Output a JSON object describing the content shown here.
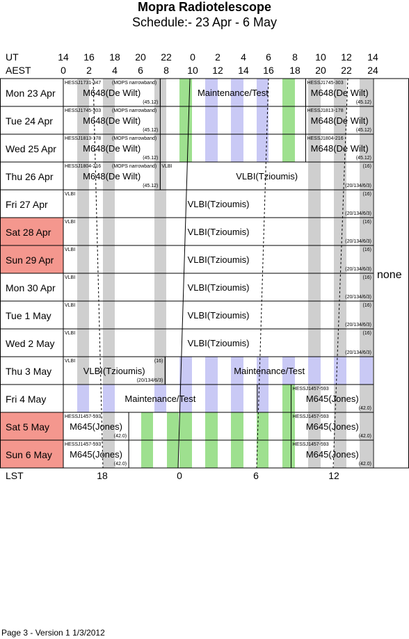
{
  "title": "Mopra Radiotelescope",
  "subtitle": "Schedule:- 23 Apr - 6  May",
  "axis": {
    "ut_label": "UT",
    "aest_label": "AEST",
    "lst_label": "LST",
    "ut_ticks": [
      "14",
      "16",
      "18",
      "20",
      "22",
      "0",
      "2",
      "4",
      "6",
      "8",
      "10",
      "12",
      "14"
    ],
    "aest_ticks": [
      "0",
      "2",
      "4",
      "6",
      "8",
      "10",
      "12",
      "14",
      "16",
      "18",
      "20",
      "22",
      "24"
    ],
    "lst_ticks": [
      "18",
      "0",
      "6",
      "12"
    ]
  },
  "days": [
    {
      "label": "Mon   23 Apr",
      "weekend": false
    },
    {
      "label": "Tue   24 Apr",
      "weekend": false
    },
    {
      "label": "Wed   25 Apr",
      "weekend": false
    },
    {
      "label": "Thu   26 Apr",
      "weekend": false
    },
    {
      "label": "Fri    27 Apr",
      "weekend": false
    },
    {
      "label": "Sat   28 Apr",
      "weekend": true
    },
    {
      "label": "Sun   29 Apr",
      "weekend": true
    },
    {
      "label": "Mon   30 Apr",
      "weekend": false
    },
    {
      "label": "Tue   1  May",
      "weekend": false
    },
    {
      "label": "Wed   2  May",
      "weekend": false
    },
    {
      "label": "Thu   3  May",
      "weekend": false
    },
    {
      "label": "Fri    4  May",
      "weekend": false
    },
    {
      "label": "Sat   5  May",
      "weekend": true
    },
    {
      "label": "Sun   6  May",
      "weekend": true
    }
  ],
  "blocks": [
    {
      "row": 0,
      "start": 0,
      "end": 4,
      "name": "M648(De Wilt)",
      "small": "HESSJ1731-347",
      "note": "(MOPS narrowband)",
      "code": "(45.12)"
    },
    {
      "row": 0,
      "start": 4,
      "end": 10,
      "name": "Maintenance/Test",
      "small": "",
      "note": "",
      "code": ""
    },
    {
      "row": 0,
      "start": 10,
      "end": 12.8,
      "name": "M648(De Wilt)",
      "small": "HESSJ1745-303",
      "note": "",
      "code": "(45.12)"
    },
    {
      "row": 1,
      "start": 0,
      "end": 4,
      "name": "M648(De Wilt)",
      "small": "HESSJ1745-303",
      "note": "(MOPS narrowband)",
      "code": "(45.12)"
    },
    {
      "row": 1,
      "start": 10,
      "end": 12.8,
      "name": "M648(De Wilt)",
      "small": "HESSJ1813-178",
      "note": "",
      "code": "(45.12)"
    },
    {
      "row": 2,
      "start": 0,
      "end": 4,
      "name": "M648(De Wilt)",
      "small": "HESSJ1813-178",
      "note": "(MOPS narrowband)",
      "code": "(45.12)"
    },
    {
      "row": 2,
      "start": 10,
      "end": 12.8,
      "name": "M648(De Wilt)",
      "small": "HESSJ1804-216",
      "note": "",
      "code": "(45.12)"
    },
    {
      "row": 3,
      "start": 0,
      "end": 4,
      "name": "M648(De Wilt)",
      "small": "HESSJ1804-216",
      "note": "(MOPS narrowband)",
      "code": "(45.12)"
    },
    {
      "row": 3,
      "start": 4,
      "end": 12.8,
      "name": "VLBI(Tzioumis)",
      "small": "VLBI",
      "note": "(16)",
      "code": "(20/134/6/3)"
    },
    {
      "row": 4,
      "start": 0,
      "end": 12.8,
      "name": "VLBI(Tzioumis)",
      "small": "VLBI",
      "note": "(16)",
      "code": "(20/134/6/3)"
    },
    {
      "row": 5,
      "start": 0,
      "end": 12.8,
      "name": "VLBI(Tzioumis)",
      "small": "VLBI",
      "note": "(16)",
      "code": "(20/134/6/3)"
    },
    {
      "row": 6,
      "start": 0,
      "end": 12.8,
      "name": "VLBI(Tzioumis)",
      "small": "VLBI",
      "note": "(16)",
      "code": "(20/134/6/3)"
    },
    {
      "row": 7,
      "start": 0,
      "end": 12.8,
      "name": "VLBI(Tzioumis)",
      "small": "VLBI",
      "note": "(16)",
      "code": "(20/134/6/3)"
    },
    {
      "row": 8,
      "start": 0,
      "end": 12.8,
      "name": "VLBI(Tzioumis)",
      "small": "VLBI",
      "note": "(16)",
      "code": "(20/134/6/3)"
    },
    {
      "row": 9,
      "start": 0,
      "end": 12.8,
      "name": "VLBI(Tzioumis)",
      "small": "VLBI",
      "note": "(16)",
      "code": "(20/134/6/3)"
    },
    {
      "row": 10,
      "start": 0,
      "end": 4.2,
      "name": "VLBI(Tzioumis)",
      "small": "VLBI",
      "note": "(16)",
      "code": "(20/134/6/3)"
    },
    {
      "row": 10,
      "start": 4.2,
      "end": 12.8,
      "name": "Maintenance/Test",
      "small": "",
      "note": "",
      "code": ""
    },
    {
      "row": 11,
      "start": 0,
      "end": 8,
      "name": "Maintenance/Test",
      "small": "",
      "note": "",
      "code": ""
    },
    {
      "row": 11,
      "start": 9.4,
      "end": 12.8,
      "name": "M645(Jones)",
      "small": "HESSJ1457-593",
      "note": "",
      "code": "(42.0)"
    },
    {
      "row": 12,
      "start": 0,
      "end": 2.7,
      "name": "M645(Jones)",
      "small": "HESSJ1457-593",
      "note": "",
      "code": "(42.0)"
    },
    {
      "row": 12,
      "start": 9.4,
      "end": 12.8,
      "name": "M645(Jones)",
      "small": "HESSJ1457-593",
      "note": "",
      "code": "(42.0)"
    },
    {
      "row": 13,
      "start": 0,
      "end": 2.7,
      "name": "M645(Jones)",
      "small": "HESSJ1457-593",
      "note": "",
      "code": "(42.0)"
    },
    {
      "row": 13,
      "start": 9.4,
      "end": 12.8,
      "name": "M645(Jones)",
      "small": "HESSJ1457-593",
      "note": "",
      "code": "(42.0)"
    }
  ],
  "side_note": "none",
  "footer": "Page 3 - Version 1  1/3/2012",
  "colors": {
    "weekend": "#f4978e",
    "grey": "#cfcfcf",
    "green": "#9ee08f",
    "lavender": "#c9c9f5"
  }
}
